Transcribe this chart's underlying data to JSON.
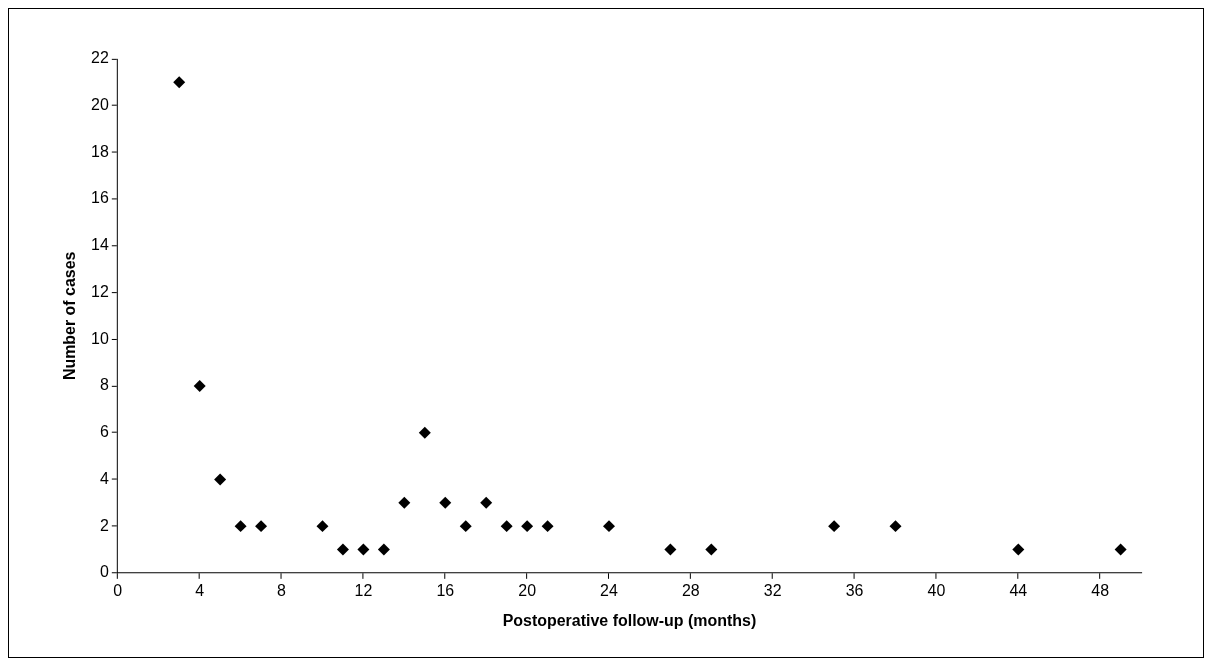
{
  "chart_data": {
    "type": "scatter",
    "xlabel": "Postoperative follow-up (months)",
    "ylabel": "Number of cases",
    "x": [
      3,
      4,
      5,
      6,
      7,
      10,
      11,
      12,
      13,
      14,
      15,
      16,
      17,
      18,
      19,
      20,
      21,
      24,
      27,
      29,
      35,
      38,
      44,
      49
    ],
    "values": [
      21,
      8,
      4,
      2,
      2,
      2,
      1,
      1,
      1,
      3,
      6,
      3,
      2,
      3,
      2,
      2,
      2,
      2,
      1,
      1,
      2,
      2,
      1,
      1
    ],
    "color": "#000000",
    "marker": "diamond",
    "xlim": [
      0,
      50
    ],
    "xticks": [
      0,
      4,
      8,
      12,
      16,
      20,
      24,
      28,
      32,
      36,
      40,
      44,
      48
    ],
    "ylim": [
      0,
      22
    ],
    "yticks": [
      0,
      2,
      4,
      6,
      8,
      10,
      12,
      14,
      16,
      18,
      20,
      22
    ],
    "grid": false,
    "legend": false
  }
}
